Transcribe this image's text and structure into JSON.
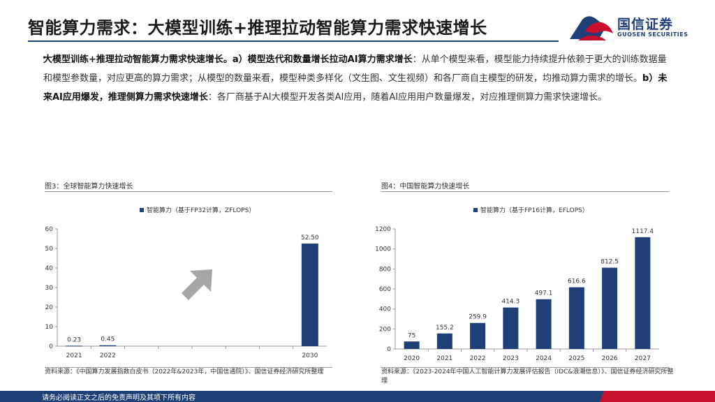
{
  "header": {
    "title": "智能算力需求：大模型训练+推理拉动智能算力需求快速增长"
  },
  "logo": {
    "name_cn": "国信证券",
    "name_en": "GUOSEN SECURITIES",
    "colors": {
      "blue": "#1f3f77",
      "red": "#c8102e"
    }
  },
  "intro": {
    "bullet": "•",
    "lead_bold": "大模型训练+推理拉动智能算力需求快速增长。",
    "a_bold": "a）模型迭代和数量增长拉动AI算力需求增长",
    "a_text": "：从单个模型来看，模型能力持续提升依赖于更大的训练数据量和模型参数量，对应更高的算力需求；从模型的数量来看，模型种类多样化（文生图、文生视频）和各厂商自主模型的研发，均推动算力需求的增长。",
    "b_bold": "b）未来AI应用爆发，推理侧算力需求快速增长",
    "b_text": "：各厂商基于AI大模型开发各类AI应用，随着AI应用用户数量爆发，对应推理侧算力需求快速增长。"
  },
  "figures": {
    "left": {
      "title": "图3：全球智能算力快速增长",
      "source": "资料来源：《中国算力发展指数白皮书（2022年&2023年，中国信通院）》、国信证券经济研究所整理"
    },
    "right": {
      "title": "图4：中国智能算力快速增长",
      "source": "资料来源：《2023-2024年中国人工智能计算力发展评估报告（IDC&浪潮信息）》、国信证券经济研究所整理"
    }
  },
  "chart_data": [
    {
      "type": "bar",
      "categories": [
        "2021",
        "2022",
        "2030"
      ],
      "x_positions": [
        "2021",
        "2022",
        "",
        "",
        "",
        "",
        "",
        "2030"
      ],
      "series": [
        {
          "name": "智能算力（基于FP32计算，ZFLOPS）",
          "values": [
            0.23,
            0.45,
            52.5
          ]
        }
      ],
      "value_labels": [
        "0.23",
        "0.45",
        "52.50"
      ],
      "ylim": [
        0,
        60
      ],
      "yticks": [
        "0",
        "10",
        "20",
        "30",
        "40",
        "50",
        "60"
      ],
      "legend": "top-center",
      "grid": false,
      "annotation": "up-right-arrow",
      "colors": {
        "bar": "#1f3f77",
        "arrow": "#a6a6a6"
      }
    },
    {
      "type": "bar",
      "categories": [
        "2020",
        "2021",
        "2022",
        "2023",
        "2024",
        "2025",
        "2026",
        "2027"
      ],
      "series": [
        {
          "name": "智能算力（基于FP16计算，EFLOPS）",
          "values": [
            75,
            155.2,
            259.9,
            414.3,
            497.1,
            616.6,
            812.5,
            1117.4
          ]
        }
      ],
      "value_labels": [
        "75",
        "155.2",
        "259.9",
        "414.3",
        "497.1",
        "616.6",
        "812.5",
        "1117.4"
      ],
      "ylim": [
        0,
        1200
      ],
      "yticks": [
        "0",
        "200",
        "400",
        "600",
        "800",
        "1000",
        "1200"
      ],
      "legend": "top-center",
      "grid": false,
      "colors": {
        "bar": "#1f3f77"
      }
    }
  ],
  "footer": {
    "disclaimer": "请务必阅读正文之后的免责声明及其项下所有内容"
  }
}
